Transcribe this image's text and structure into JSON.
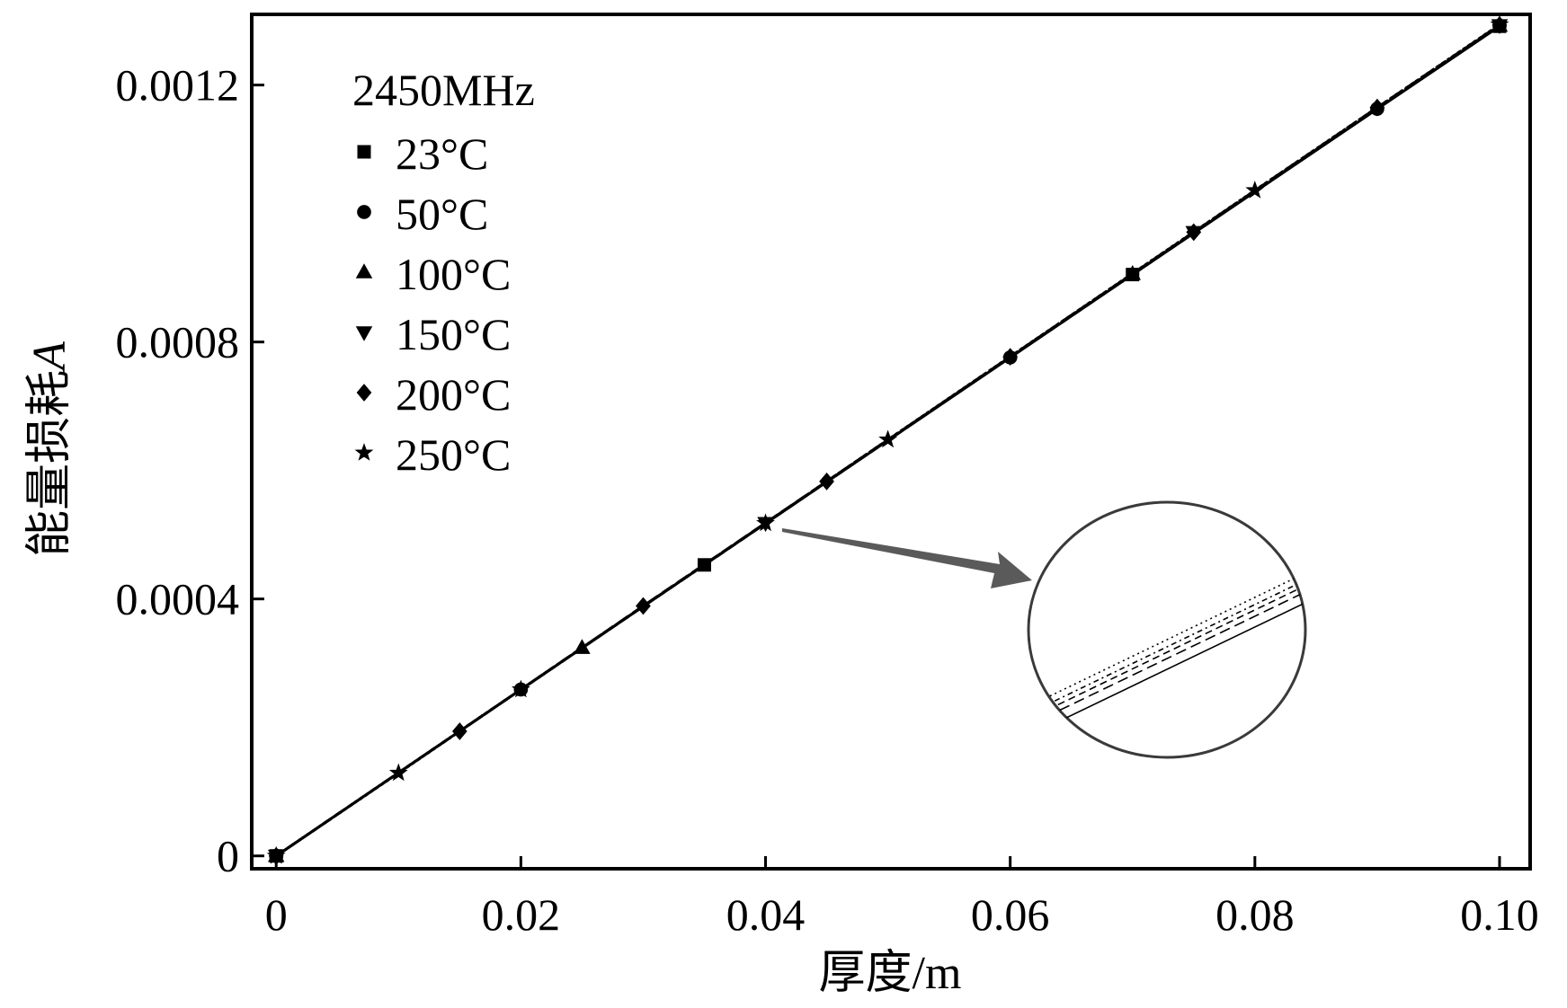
{
  "chart_data": {
    "type": "line",
    "xlabel": "厚度/m",
    "ylabel": "能量损耗",
    "ylabel_italic": "A",
    "xlim": [
      -0.002,
      0.1025
    ],
    "ylim": [
      -2e-05,
      0.00131
    ],
    "x_ticks": [
      0,
      0.02,
      0.04,
      0.06,
      0.08,
      0.1
    ],
    "x_tick_labels": [
      "0",
      "0.02",
      "0.04",
      "0.06",
      "0.08",
      "0.10"
    ],
    "y_ticks": [
      0,
      0.0004,
      0.0008,
      0.0012
    ],
    "y_tick_labels": [
      "0",
      "0.0004",
      "0.0008",
      "0.0012"
    ],
    "legend_title": "2450MHz",
    "legend_position": "top-left",
    "grid": false,
    "series": [
      {
        "name": "23°C",
        "marker": "square",
        "x": [
          0,
          0.035,
          0.07,
          0.1
        ],
        "y": [
          0,
          0.000453,
          0.000905,
          0.0012915
        ]
      },
      {
        "name": "50°C",
        "marker": "circle",
        "x": [
          0,
          0.02,
          0.06,
          0.09,
          0.1
        ],
        "y": [
          0,
          0.000259,
          0.000776,
          0.001163,
          0.001292
        ]
      },
      {
        "name": "100°C",
        "marker": "triangle-up",
        "x": [
          0,
          0.025,
          0.07,
          0.1
        ],
        "y": [
          0,
          0.000324,
          0.000906,
          0.0012925
        ]
      },
      {
        "name": "150°C",
        "marker": "triangle-down",
        "x": [
          0,
          0.04,
          0.075,
          0.1
        ],
        "y": [
          0,
          0.000518,
          0.000971,
          0.001293
        ]
      },
      {
        "name": "200°C",
        "marker": "diamond",
        "x": [
          0,
          0.015,
          0.03,
          0.045,
          0.06,
          0.075,
          0.09,
          0.1
        ],
        "y": [
          0,
          0.000194,
          0.000389,
          0.000583,
          0.000777,
          0.000971,
          0.001165,
          0.0012935
        ]
      },
      {
        "name": "250°C",
        "marker": "star",
        "x": [
          0,
          0.01,
          0.02,
          0.04,
          0.05,
          0.08,
          0.1
        ],
        "y": [
          0,
          0.000129,
          0.000259,
          0.000518,
          0.000648,
          0.001036,
          0.001294
        ]
      }
    ]
  }
}
